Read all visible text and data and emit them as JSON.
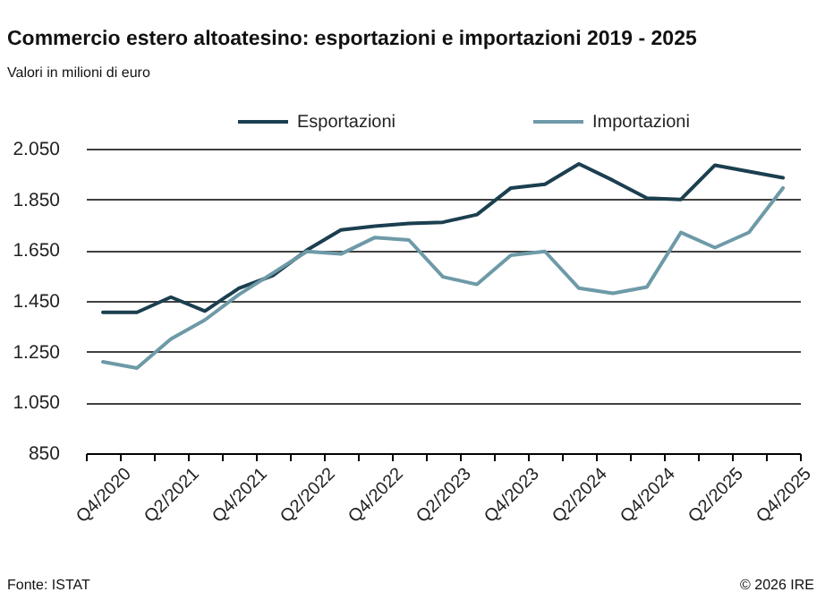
{
  "chart_data": {
    "type": "line",
    "title": "Commercio estero altoatesino: esportazioni e importazioni 2019 - 2025",
    "subtitle": "Valori in milioni di euro",
    "categories": [
      "Q4/2020",
      null,
      "Q2/2021",
      null,
      "Q4/2021",
      null,
      "Q2/2022",
      null,
      "Q4/2022",
      null,
      "Q2/2023",
      null,
      "Q4/2023",
      null,
      "Q2/2024",
      null,
      "Q4/2024",
      null,
      "Q2/2025",
      null,
      "Q4/2025"
    ],
    "series": [
      {
        "name": "Esportazioni",
        "color": "#1b3f4f",
        "values": [
          1405,
          1405,
          1465,
          1410,
          1500,
          1550,
          1650,
          1730,
          1745,
          1755,
          1760,
          1790,
          1895,
          1910,
          1990,
          1925,
          1855,
          1850,
          1985,
          1960,
          1935
        ]
      },
      {
        "name": "Importazioni",
        "color": "#6e9aa8",
        "values": [
          1210,
          1185,
          1300,
          1375,
          1475,
          1560,
          1645,
          1635,
          1700,
          1690,
          1545,
          1515,
          1630,
          1645,
          1500,
          1480,
          1505,
          1720,
          1660,
          1720,
          1895
        ]
      }
    ],
    "ylim": [
      850,
      2050
    ],
    "yticks": [
      850,
      {
        "value": 1050,
        "label": "1.050"
      },
      {
        "value": 1250,
        "label": "1.250"
      },
      {
        "value": 1450,
        "label": "1.450"
      },
      {
        "value": 1650,
        "label": "1.650"
      },
      {
        "value": 1850,
        "label": "1.850"
      },
      {
        "value": 2050,
        "label": "2.050"
      }
    ],
    "grid": "y",
    "legend": "top",
    "line_style": "solid",
    "annotations": [
      "Fonte: ISTAT",
      "© 2026 IRE"
    ]
  }
}
